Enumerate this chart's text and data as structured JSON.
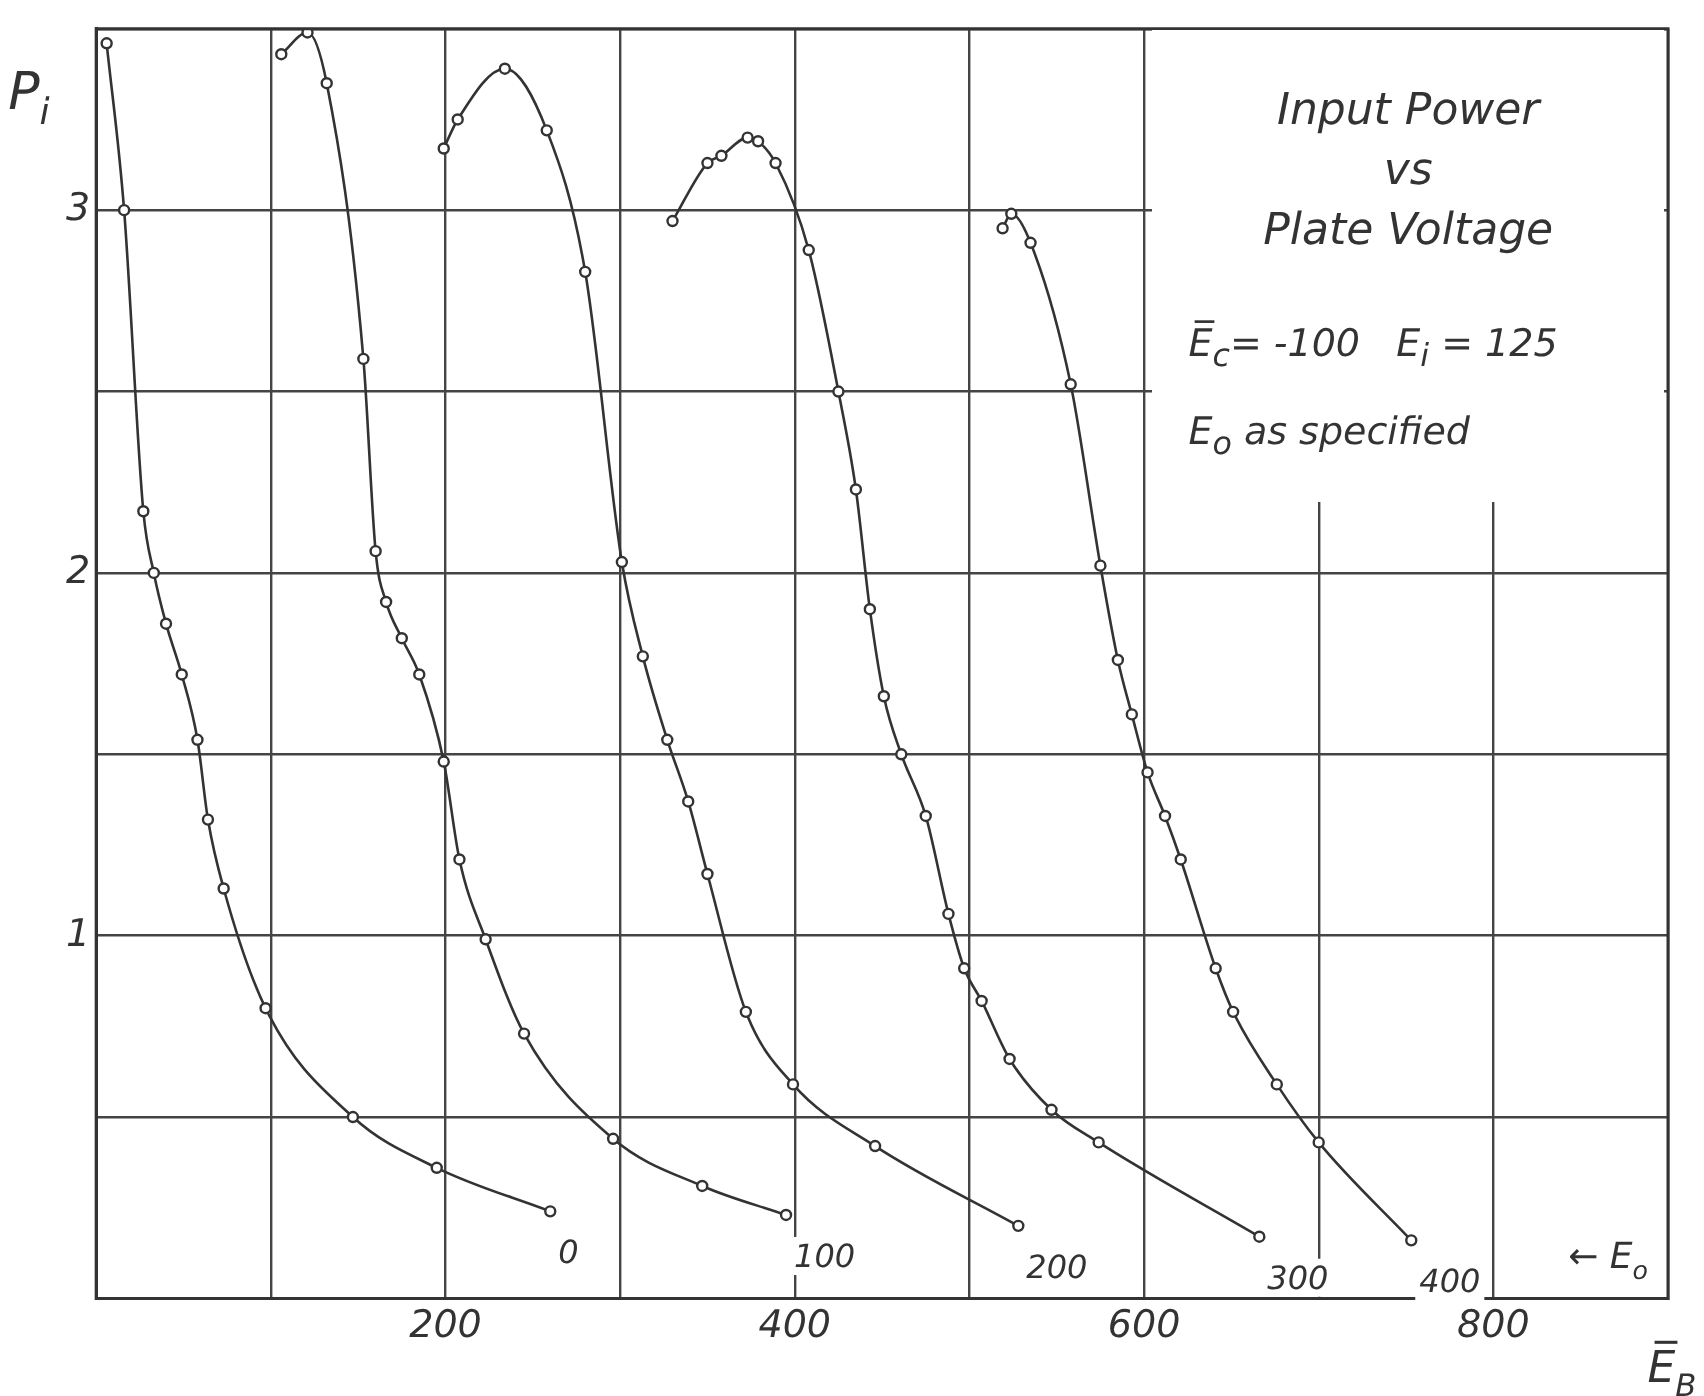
{
  "chart_data": {
    "type": "line",
    "title": "Input Power\nvs\nPlate Voltage",
    "xlabel": "E̅$_{B}$",
    "ylabel": "P$_{i}$",
    "annotations": [
      "E̅$_{c}$= -100   E$_{i}$ = 125",
      "E$_{o}$ as specified",
      "← E$_{o}$"
    ],
    "xlim": [
      0,
      900
    ],
    "ylim": [
      0,
      3.5
    ],
    "xticks": [
      {
        "value": 0,
        "label": null
      },
      {
        "value": 100,
        "label": null
      },
      200,
      {
        "value": 300,
        "label": null
      },
      400,
      {
        "value": 500,
        "label": null
      },
      600,
      {
        "value": 700,
        "label": null
      },
      800,
      {
        "value": 900,
        "label": null
      }
    ],
    "yticks": [
      {
        "value": 0,
        "label": null
      },
      {
        "value": 0.5,
        "label": null
      },
      1,
      {
        "value": 1.5,
        "label": null
      },
      2,
      {
        "value": 2.5,
        "label": null
      },
      3,
      {
        "value": 3.5,
        "label": null
      }
    ],
    "grid": true,
    "legend": false,
    "marker": "circle",
    "line_style": "solid",
    "series": [
      {
        "name": "0",
        "color": "#333333",
        "x": [
          6,
          16,
          27,
          33,
          40,
          49,
          58,
          64,
          73,
          97,
          147,
          195,
          260
        ],
        "values": [
          3.46,
          3.0,
          2.17,
          2.0,
          1.86,
          1.72,
          1.54,
          1.32,
          1.13,
          0.8,
          0.5,
          0.36,
          0.24
        ]
      },
      {
        "name": "100",
        "color": "#333333",
        "x": [
          106,
          121,
          132,
          153,
          160,
          166,
          175,
          185,
          199,
          208,
          223,
          245,
          296,
          347,
          395
        ],
        "values": [
          3.43,
          3.49,
          3.35,
          2.59,
          2.06,
          1.92,
          1.82,
          1.72,
          1.48,
          1.21,
          0.99,
          0.73,
          0.44,
          0.31,
          0.23
        ]
      },
      {
        "name": "200",
        "color": "#333333",
        "x": [
          199,
          207,
          234,
          258,
          280,
          301,
          313,
          327,
          339,
          350,
          372,
          399,
          446,
          528
        ],
        "values": [
          3.17,
          3.25,
          3.39,
          3.22,
          2.83,
          2.03,
          1.77,
          1.54,
          1.37,
          1.17,
          0.79,
          0.59,
          0.42,
          0.2
        ]
      },
      {
        "name": "300",
        "color": "#333333",
        "x": [
          330,
          350,
          358,
          373,
          379,
          389,
          408,
          425,
          435,
          443,
          451,
          461,
          475,
          488,
          497,
          507,
          523,
          547,
          574,
          666
        ],
        "values": [
          2.97,
          3.13,
          3.15,
          3.2,
          3.19,
          3.13,
          2.89,
          2.5,
          2.23,
          1.9,
          1.66,
          1.5,
          1.33,
          1.06,
          0.91,
          0.82,
          0.66,
          0.52,
          0.43,
          0.17
        ]
      },
      {
        "name": "400",
        "color": "#333333",
        "x": [
          519,
          524,
          535,
          558,
          575,
          585,
          593,
          602,
          612,
          621,
          641,
          651,
          676,
          700,
          753
        ],
        "values": [
          2.95,
          2.99,
          2.91,
          2.52,
          2.02,
          1.76,
          1.61,
          1.45,
          1.33,
          1.21,
          0.91,
          0.79,
          0.59,
          0.43,
          0.16
        ]
      }
    ]
  }
}
